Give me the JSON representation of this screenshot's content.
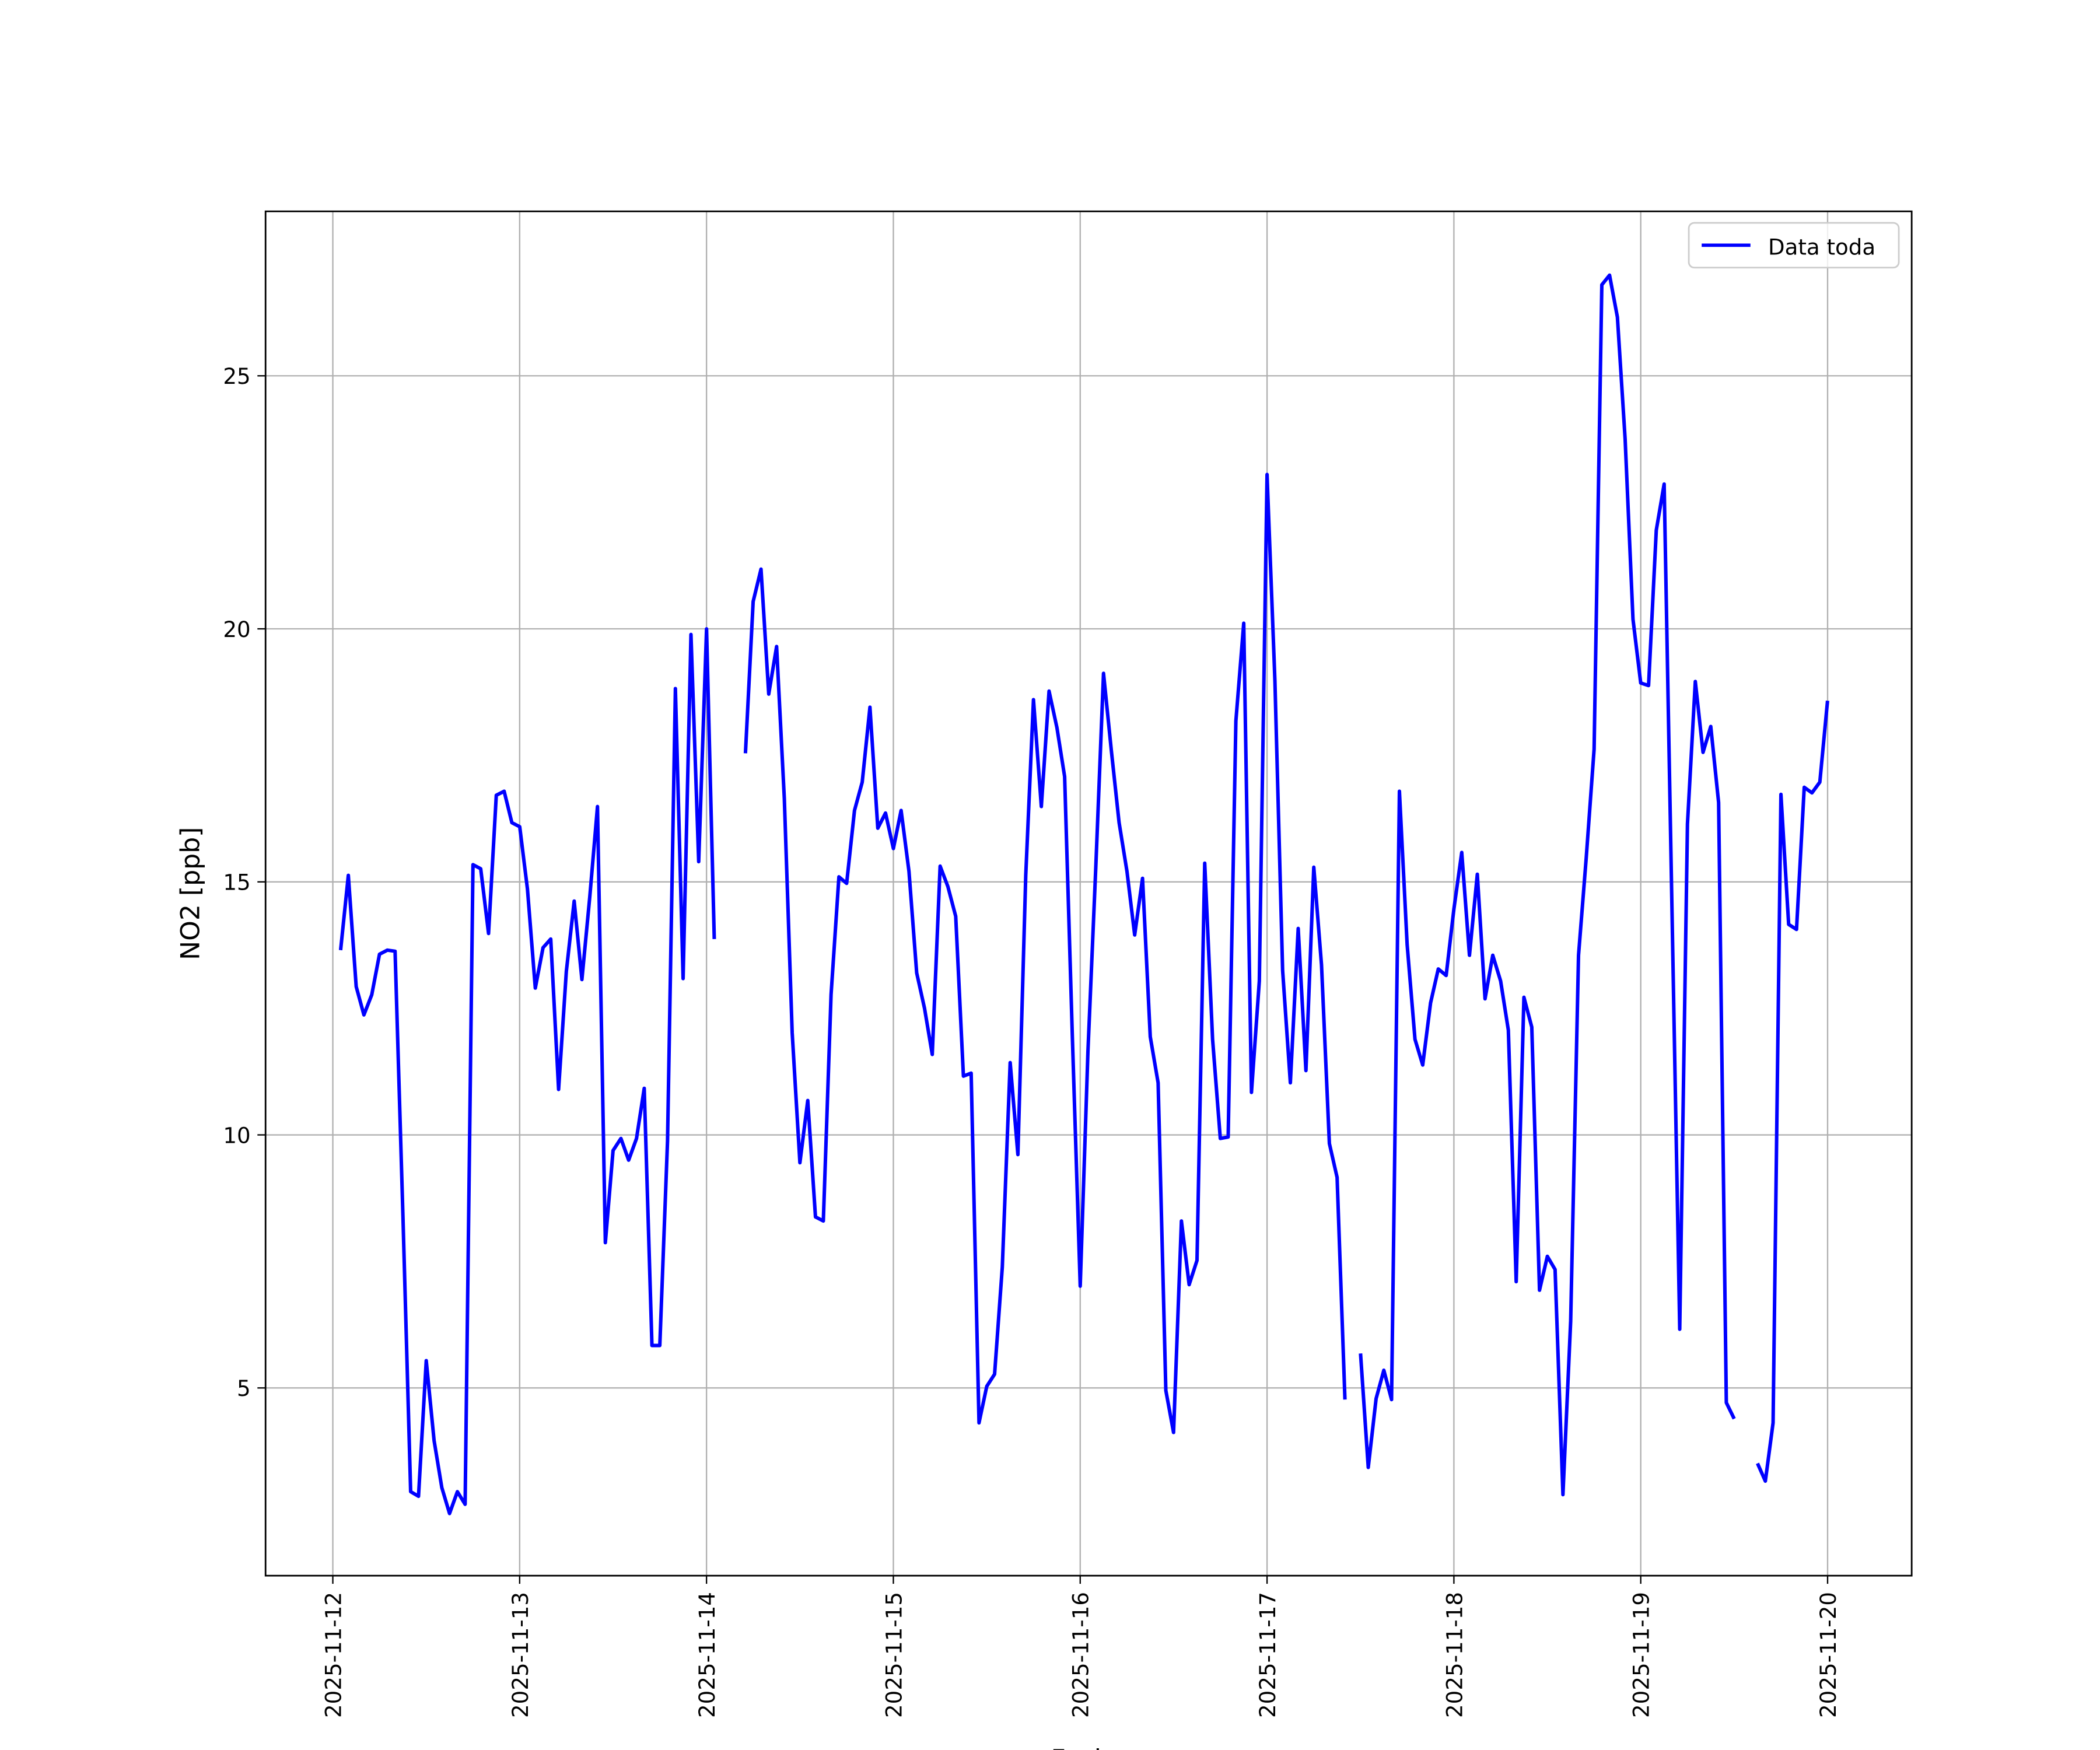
{
  "chart_data": {
    "type": "line",
    "title": "",
    "xlabel": "Fecha",
    "ylabel": "NO2 [ppb]",
    "x_start": "2025-11-12 01:00",
    "x_step_hours": 1,
    "xlim_days": [
      -0.36,
      8.45
    ],
    "ylim": [
      1.29,
      28.25
    ],
    "grid": true,
    "legend_position": "top-right",
    "xticks": [
      "2025-11-12",
      "2025-11-13",
      "2025-11-14",
      "2025-11-15",
      "2025-11-16",
      "2025-11-17",
      "2025-11-18",
      "2025-11-19",
      "2025-11-20"
    ],
    "yticks": [
      5,
      10,
      15,
      20,
      25
    ],
    "series": [
      {
        "name": "Data toda",
        "color": "#0000ff",
        "values": [
          13.65,
          15.13,
          12.93,
          12.37,
          12.77,
          13.57,
          13.65,
          13.63,
          8.4,
          2.95,
          2.86,
          5.54,
          3.96,
          3.03,
          2.52,
          2.95,
          2.7,
          15.34,
          15.26,
          13.98,
          16.71,
          16.79,
          16.17,
          16.09,
          14.86,
          12.9,
          13.7,
          13.87,
          10.9,
          13.23,
          14.62,
          13.07,
          14.7,
          16.49,
          7.87,
          9.69,
          9.93,
          9.5,
          9.93,
          10.92,
          5.84,
          5.84,
          9.88,
          18.82,
          13.09,
          19.89,
          15.4,
          20.0,
          13.87,
          null,
          null,
          null,
          17.54,
          20.54,
          21.18,
          18.71,
          19.65,
          16.65,
          12.02,
          9.45,
          10.68,
          8.38,
          8.3,
          12.77,
          15.1,
          14.97,
          16.41,
          16.97,
          18.45,
          16.06,
          16.36,
          15.66,
          16.41,
          15.21,
          13.2,
          12.5,
          11.59,
          15.31,
          14.91,
          14.32,
          11.16,
          11.22,
          4.31,
          5.03,
          5.27,
          7.39,
          11.43,
          9.61,
          15.13,
          18.6,
          16.49,
          18.77,
          18.05,
          17.08,
          11.94,
          7.01,
          11.65,
          15.29,
          19.12,
          17.59,
          16.17,
          15.21,
          13.95,
          15.07,
          11.94,
          11.03,
          4.95,
          4.12,
          8.3,
          7.04,
          7.52,
          15.37,
          11.89,
          9.93,
          9.96,
          18.18,
          20.11,
          10.84,
          13.04,
          23.05,
          18.98,
          13.25,
          11.03,
          14.08,
          11.27,
          15.29,
          13.36,
          9.83,
          9.16,
          4.77,
          null,
          5.68,
          3.43,
          4.79,
          5.35,
          4.77,
          16.79,
          13.76,
          11.89,
          11.38,
          12.61,
          13.28,
          13.15,
          14.46,
          15.58,
          13.55,
          15.15,
          12.69,
          13.55,
          13.04,
          12.07,
          7.1,
          12.72,
          12.13,
          6.93,
          7.6,
          7.34,
          2.89,
          6.32,
          13.55,
          15.48,
          17.62,
          26.8,
          26.99,
          26.16,
          23.75,
          20.19,
          18.93,
          18.88,
          21.95,
          22.86,
          14.57,
          6.16,
          16.14,
          18.96,
          17.56,
          18.07,
          16.57,
          4.71,
          4.39,
          null,
          null,
          3.51,
          3.16,
          4.31,
          16.73,
          14.16,
          14.06,
          16.87,
          16.76,
          16.97,
          18.58
        ]
      }
    ]
  }
}
